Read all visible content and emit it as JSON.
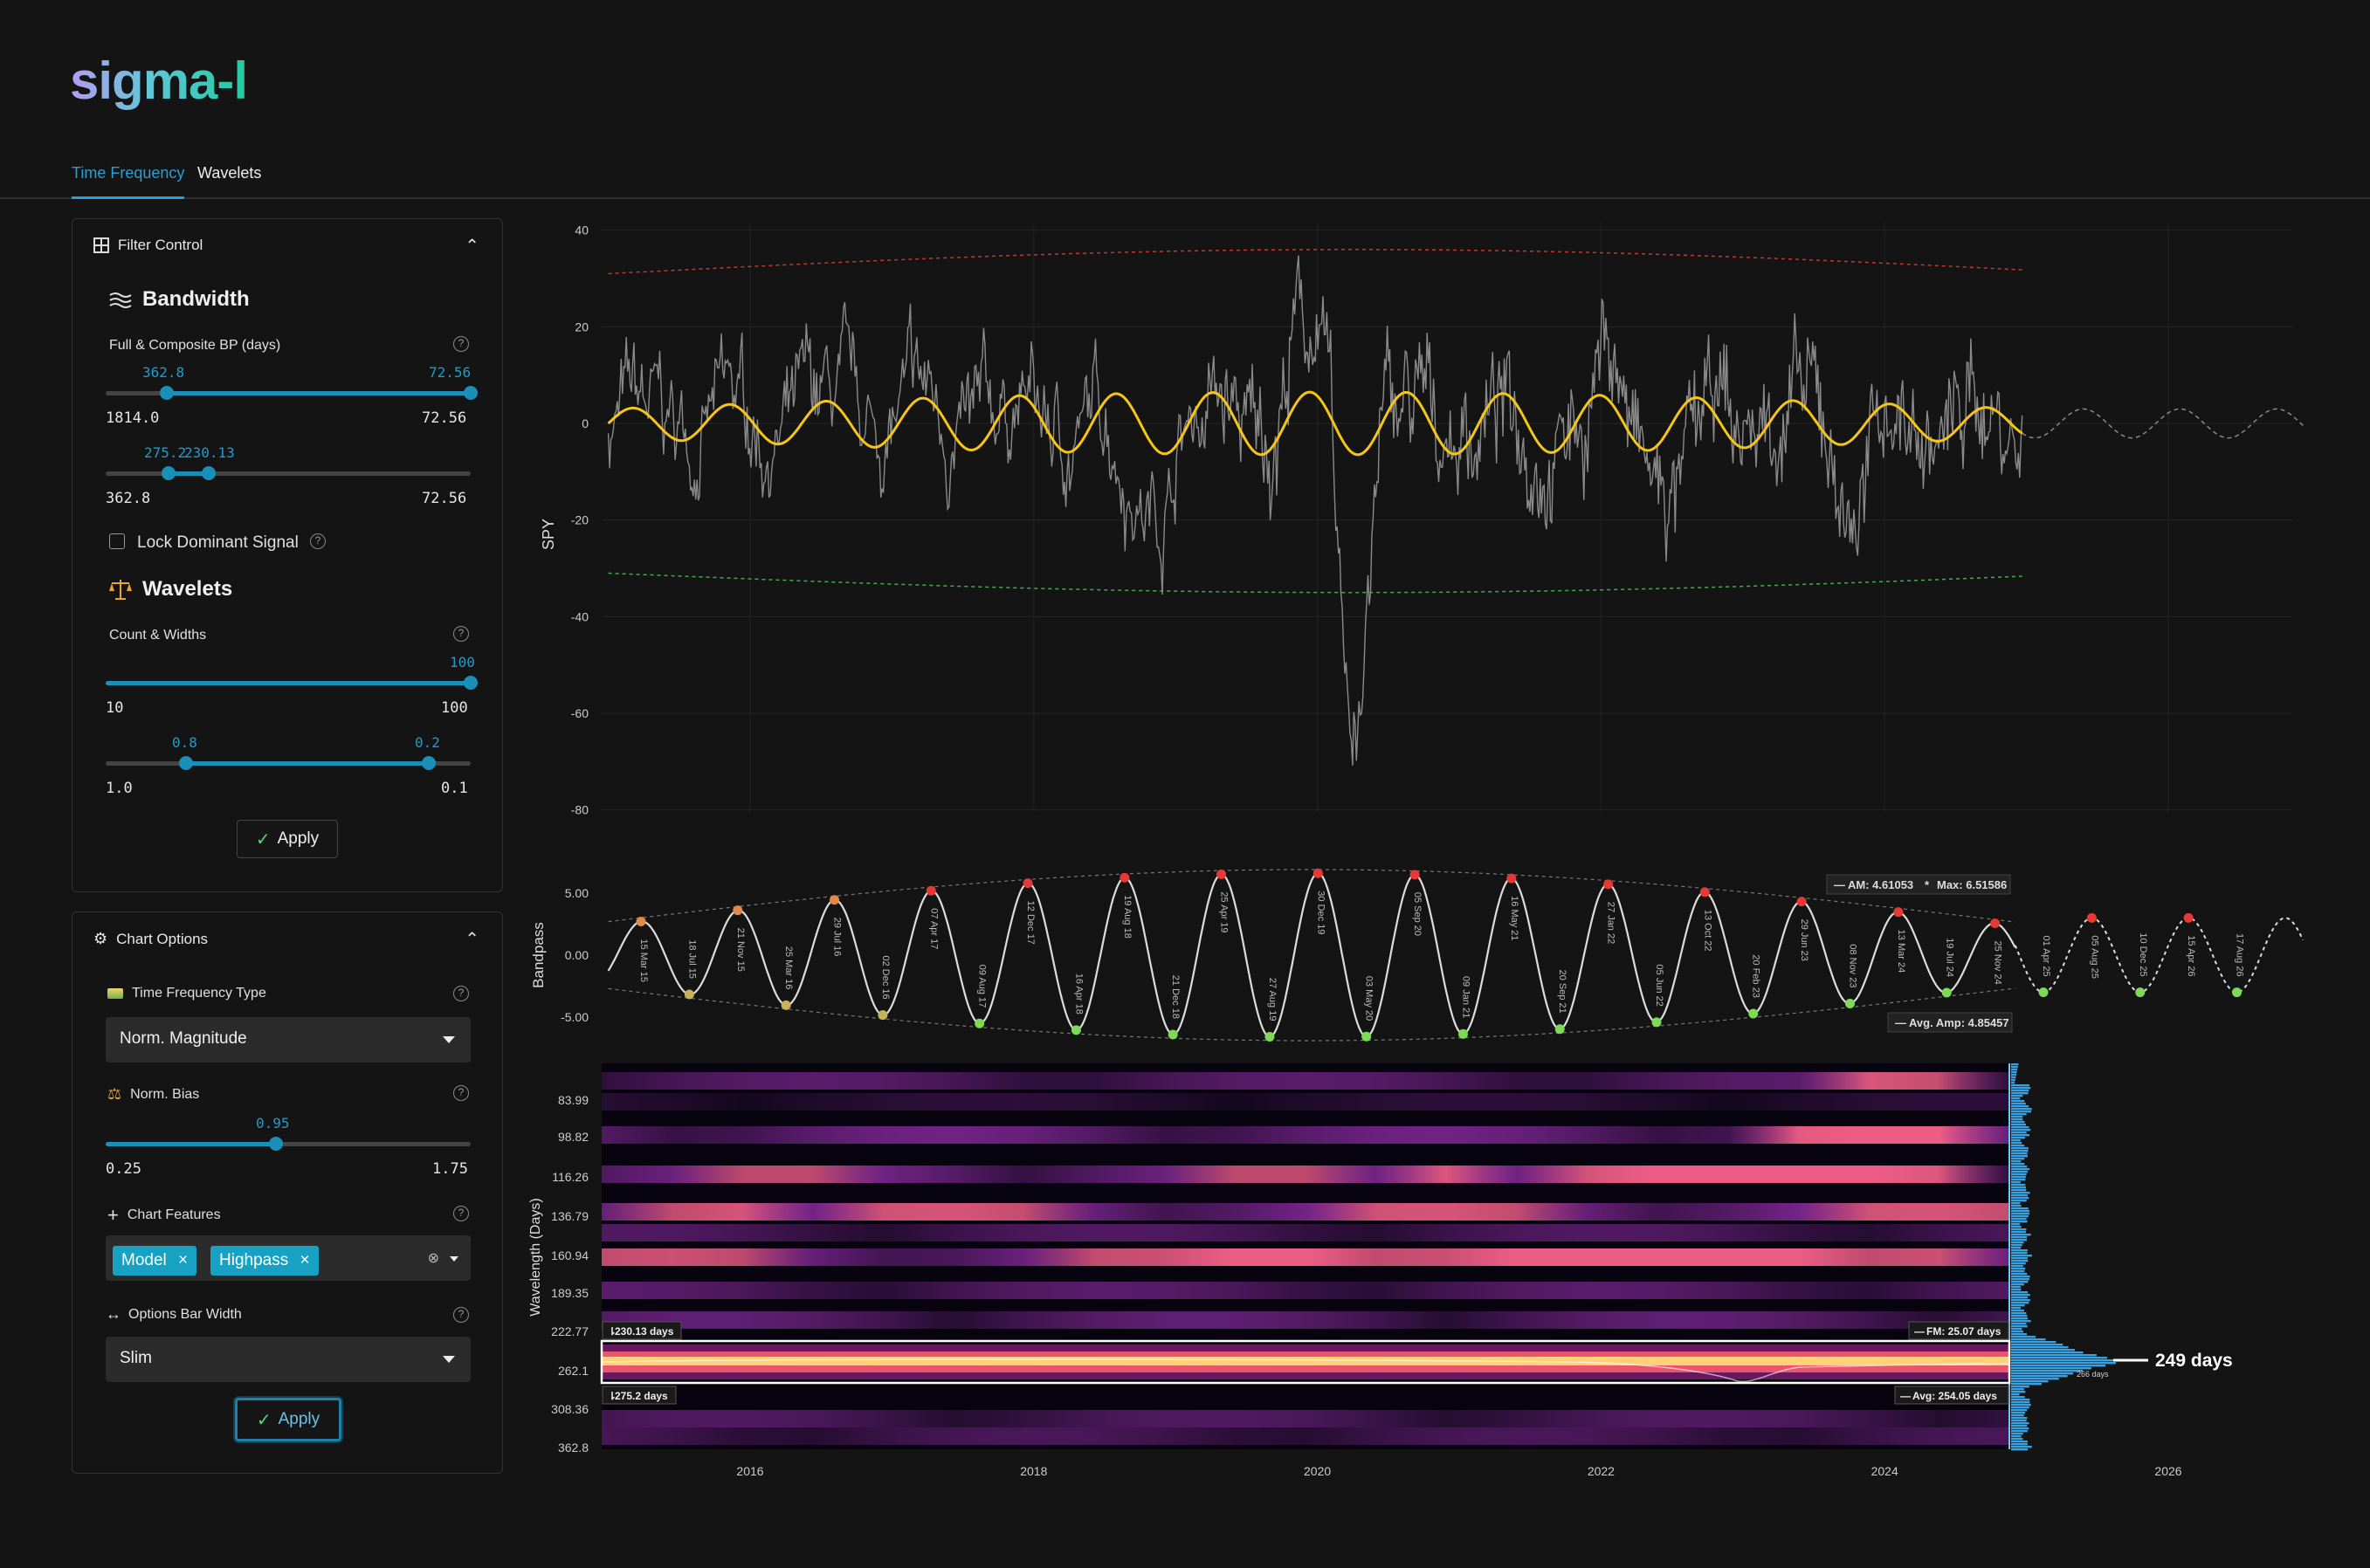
{
  "app": {
    "logo": "sigma-l"
  },
  "tabs": [
    {
      "label": "Time Frequency",
      "active": true
    },
    {
      "label": "Wavelets",
      "active": false
    }
  ],
  "filter_control": {
    "title": "Filter Control",
    "bandwidth": {
      "title": "Bandwidth",
      "label": "Full & Composite BP (days)",
      "slider1": {
        "low": "362.8",
        "high": "72.56",
        "min": "1814.0",
        "max": "72.56"
      },
      "slider2": {
        "low": "275.2",
        "high": "230.13",
        "min": "362.8",
        "max": "72.56"
      }
    },
    "lock_label": "Lock Dominant Signal",
    "wavelets": {
      "title": "Wavelets",
      "label": "Count & Widths",
      "count": {
        "value": "100",
        "min": "10",
        "max": "100"
      },
      "widths": {
        "low": "0.8",
        "high": "0.2",
        "min": "1.0",
        "max": "0.1"
      }
    },
    "apply": "Apply"
  },
  "chart_options": {
    "title": "Chart Options",
    "tf_type": {
      "label": "Time Frequency Type",
      "value": "Norm. Magnitude"
    },
    "bias": {
      "label": "Norm. Bias",
      "value": "0.95",
      "min": "0.25",
      "max": "1.75"
    },
    "features": {
      "label": "Chart Features",
      "chips": [
        "Model",
        "Highpass"
      ]
    },
    "bar_width": {
      "label": "Options Bar Width",
      "value": "Slim"
    },
    "apply": "Apply"
  },
  "colors": {
    "accent": "#1f9ccc",
    "signal": "#f5c518",
    "price": "#8a8a8a",
    "upper_env": "#c0392b",
    "lower_env": "#3cb043",
    "peak": "#e53935",
    "trough": "#7ed957"
  },
  "chart_data": [
    {
      "type": "line",
      "ylabel": "SPY",
      "ylim": [
        -80,
        40
      ],
      "yticks": [
        "40",
        "20",
        "0",
        "-20",
        "-40",
        "-60",
        "-80"
      ],
      "xticks": [
        "2016",
        "2018",
        "2020",
        "2022",
        "2024",
        "2026"
      ],
      "series": [
        {
          "values": "detrended price oscillation between roughly -80 and +36"
        },
        {
          "values": "sinusoid amplitude ~4-7, period ~249 days"
        }
      ]
    },
    {
      "type": "line",
      "ylabel": "Bandpass",
      "yticks": [
        "5.00",
        "0.00",
        "-5.00"
      ],
      "annotations": {
        "am": "AM: 4.61053",
        "max": "Max: 6.51586",
        "avg_amp": "Avg. Amp: 4.85457"
      },
      "labels": [
        "15 Mar 15",
        "18 Jul 15",
        "21 Nov 15",
        "25 Mar 16",
        "29 Jul 16",
        "02 Dec 16",
        "07 Apr 17",
        "09 Aug 17",
        "12 Dec 17",
        "16 Apr 18",
        "19 Aug 18",
        "21 Dec 18",
        "25 Apr 19",
        "27 Aug 19",
        "30 Dec 19",
        "03 May 20",
        "05 Sep 20",
        "09 Jan 21",
        "16 May 21",
        "20 Sep 21",
        "27 Jan 22",
        "05 Jun 22",
        "13 Oct 22",
        "20 Feb 23",
        "29 Jun 23",
        "08 Nov 23",
        "13 Mar 24",
        "19 Jul 24",
        "25 Nov 24",
        "01 Apr 25",
        "05 Aug 25",
        "10 Dec 25",
        "15 Apr 26",
        "17 Aug 26"
      ]
    },
    {
      "type": "heatmap",
      "ylabel": "Wavelength (Days)",
      "yticks": [
        "83.99",
        "98.82",
        "116.26",
        "136.79",
        "160.94",
        "189.35",
        "222.77",
        "262.1",
        "308.36",
        "362.8"
      ],
      "xticks": [
        "2016",
        "2018",
        "2020",
        "2022",
        "2024",
        "2026"
      ],
      "annotations": {
        "upper": "230.13 days",
        "lower": "275.2 days",
        "fm": "FM: 25.07 days",
        "avg": "Avg: 254.05 days",
        "dominant": "249 days",
        "dominant_small": "266 days"
      }
    }
  ]
}
